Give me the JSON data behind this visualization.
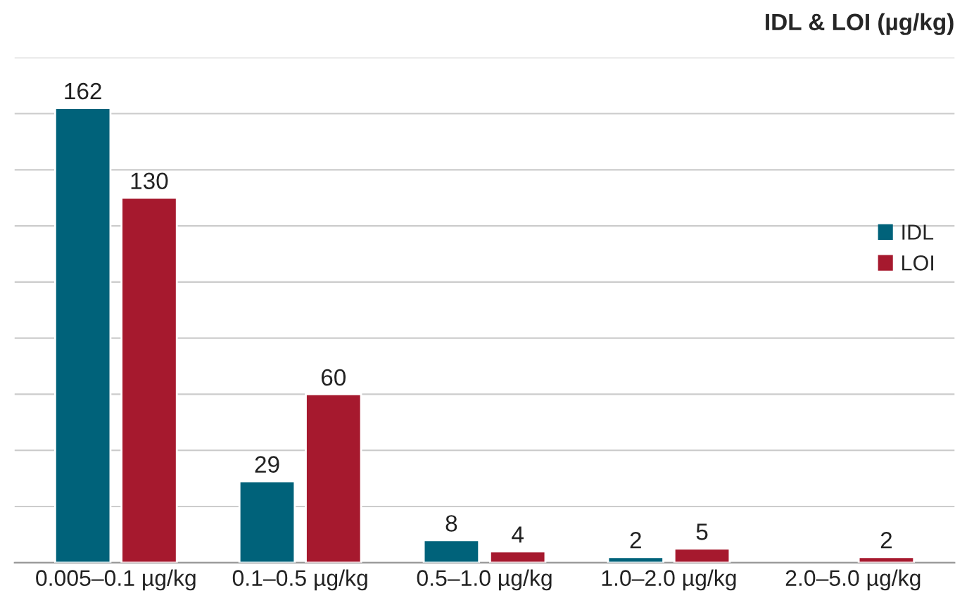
{
  "chart_data": {
    "type": "bar",
    "title": "IDL & LOI (µg/kg)",
    "categories": [
      "0.005–0.1 µg/kg",
      "0.1–0.5 µg/kg",
      "0.5–1.0 µg/kg",
      "1.0–2.0 µg/kg",
      "2.0–5.0 µg/kg"
    ],
    "series": [
      {
        "name": "IDL",
        "color": "#00627a",
        "values": [
          162,
          29,
          8,
          2,
          null
        ]
      },
      {
        "name": "LOI",
        "color": "#a6192e",
        "values": [
          130,
          60,
          4,
          5,
          2
        ]
      }
    ],
    "ylim": [
      0,
      180
    ],
    "yticks": [
      {
        "value": 0,
        "label": null
      },
      {
        "value": 20,
        "label": null
      },
      {
        "value": 40,
        "label": null
      },
      {
        "value": 60,
        "label": null
      },
      {
        "value": 80,
        "label": null
      },
      {
        "value": 100,
        "label": null
      },
      {
        "value": 120,
        "label": null
      },
      {
        "value": 140,
        "label": null
      },
      {
        "value": 160,
        "label": null
      },
      {
        "value": 180,
        "label": null
      }
    ],
    "tick_labels": "x",
    "grid": "y",
    "data_labels": true,
    "legend": "right"
  }
}
